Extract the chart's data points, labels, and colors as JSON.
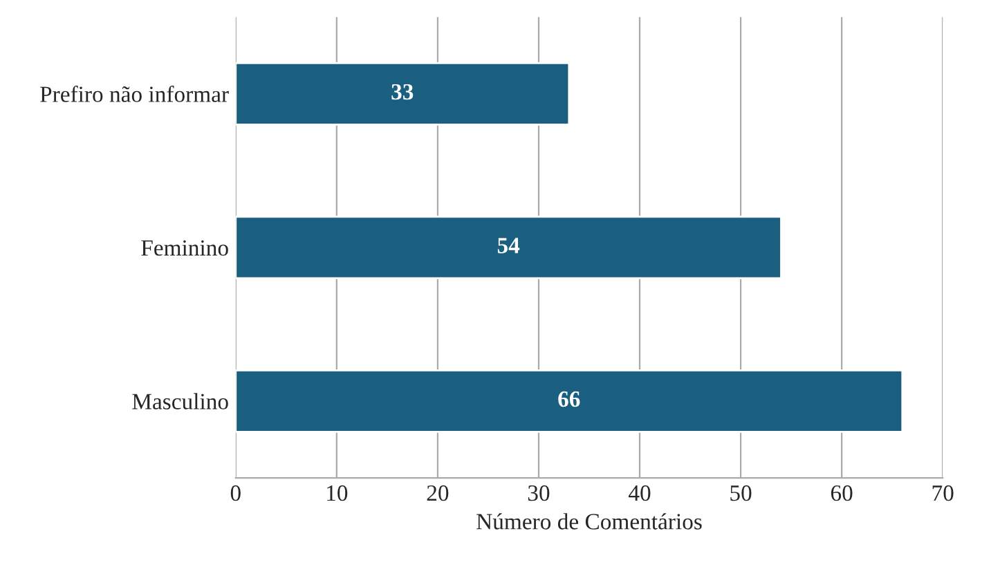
{
  "chart_data": {
    "type": "bar",
    "orientation": "horizontal",
    "xlabel": "Número de Comentários",
    "categories": [
      "Prefiro não informar",
      "Feminino",
      "Masculino"
    ],
    "values": [
      33,
      54,
      66
    ],
    "color": "#1a5f80",
    "xlim": [
      0,
      70
    ],
    "xticks": [
      0,
      10,
      20,
      30,
      40,
      50,
      60,
      70
    ],
    "grid": "x",
    "data_labels": true
  }
}
